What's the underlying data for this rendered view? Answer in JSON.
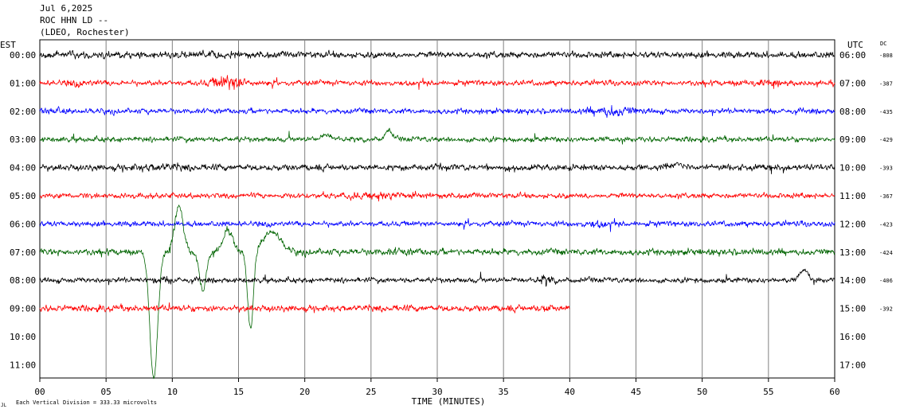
{
  "header": {
    "date": "Jul 6,2025",
    "station": "ROC HHN LD --",
    "network": "(LDEO, Rochester)"
  },
  "left_axis_label": "EST",
  "right_axis_label": "UTC",
  "dc_label": "DC",
  "footer": {
    "logo_text": "JL",
    "scale_note": "Each Vertical Division =  333.33 microvolts"
  },
  "colors": {
    "black": "#000000",
    "red": "#ff0000",
    "blue": "#0000ff",
    "green": "#006400",
    "grid": "#808080"
  },
  "chart_data": {
    "type": "line",
    "title": "",
    "xlabel": "TIME (MINUTES)",
    "ylabel": "",
    "xlim": [
      0,
      60
    ],
    "x_ticks": [
      "00",
      "05",
      "10",
      "15",
      "20",
      "25",
      "30",
      "35",
      "40",
      "45",
      "50",
      "55",
      "60"
    ],
    "grid": true,
    "rows": [
      {
        "est": "00:00",
        "utc": "06:00",
        "dc": "-808",
        "color": "black",
        "end_min": 60,
        "amp": 6,
        "events": [
          [
            13,
            1.5,
            1.3
          ]
        ]
      },
      {
        "est": "01:00",
        "utc": "07:00",
        "dc": "-387",
        "color": "red",
        "end_min": 60,
        "amp": 5,
        "events": [
          [
            14.3,
            1.4,
            3.0
          ],
          [
            3,
            1.2,
            1.4
          ],
          [
            54,
            1.5,
            1.4
          ]
        ]
      },
      {
        "est": "02:00",
        "utc": "08:00",
        "dc": "-435",
        "color": "blue",
        "end_min": 60,
        "amp": 5,
        "events": [
          [
            43.2,
            1.6,
            2.4
          ],
          [
            1,
            1,
            1.4
          ]
        ]
      },
      {
        "est": "03:00",
        "utc": "09:00",
        "dc": "-429",
        "color": "green",
        "end_min": 60,
        "amp": 5,
        "events": [],
        "bumps": [
          [
            26.3,
            -12,
            0.35
          ],
          [
            21.7,
            -5,
            0.5
          ]
        ]
      },
      {
        "est": "04:00",
        "utc": "10:00",
        "dc": "-393",
        "color": "black",
        "end_min": 60,
        "amp": 6,
        "events": [
          [
            9,
            2,
            1.4
          ]
        ],
        "bumps": [
          [
            48,
            -4,
            0.9
          ]
        ]
      },
      {
        "est": "05:00",
        "utc": "11:00",
        "dc": "-367",
        "color": "red",
        "end_min": 60,
        "amp": 5,
        "events": [
          [
            26,
            2,
            1.7
          ]
        ]
      },
      {
        "est": "06:00",
        "utc": "12:00",
        "dc": "-423",
        "color": "blue",
        "end_min": 60,
        "amp": 5,
        "events": [
          [
            42,
            1,
            1.6
          ]
        ]
      },
      {
        "est": "07:00",
        "utc": "13:00",
        "dc": "-424",
        "color": "green",
        "end_min": 60,
        "amp": 6,
        "events": [
          [
            27,
            1.5,
            1.3
          ]
        ],
        "bumps": [
          [
            8.6,
            158,
            0.42
          ],
          [
            10.5,
            -58,
            0.45
          ],
          [
            12.3,
            48,
            0.35
          ],
          [
            14.2,
            -28,
            0.5
          ],
          [
            15.9,
            100,
            0.3
          ],
          [
            17.5,
            -26,
            0.9
          ]
        ]
      },
      {
        "est": "08:00",
        "utc": "14:00",
        "dc": "-406",
        "color": "black",
        "end_min": 60,
        "amp": 5,
        "events": [
          [
            38.2,
            0.6,
            2.2
          ],
          [
            9.5,
            1,
            1.5
          ]
        ],
        "bumps": [
          [
            57.7,
            -14,
            0.4
          ]
        ]
      },
      {
        "est": "09:00",
        "utc": "15:00",
        "dc": "-392",
        "color": "red",
        "end_min": 40,
        "amp": 6,
        "events": [
          [
            38.3,
            0.5,
            1.6
          ]
        ]
      },
      {
        "est": "10:00",
        "utc": "16:00",
        "dc": "",
        "color": "",
        "end_min": 0,
        "amp": 0,
        "events": []
      },
      {
        "est": "11:00",
        "utc": "17:00",
        "dc": "",
        "color": "",
        "end_min": 0,
        "amp": 0,
        "events": []
      }
    ]
  }
}
